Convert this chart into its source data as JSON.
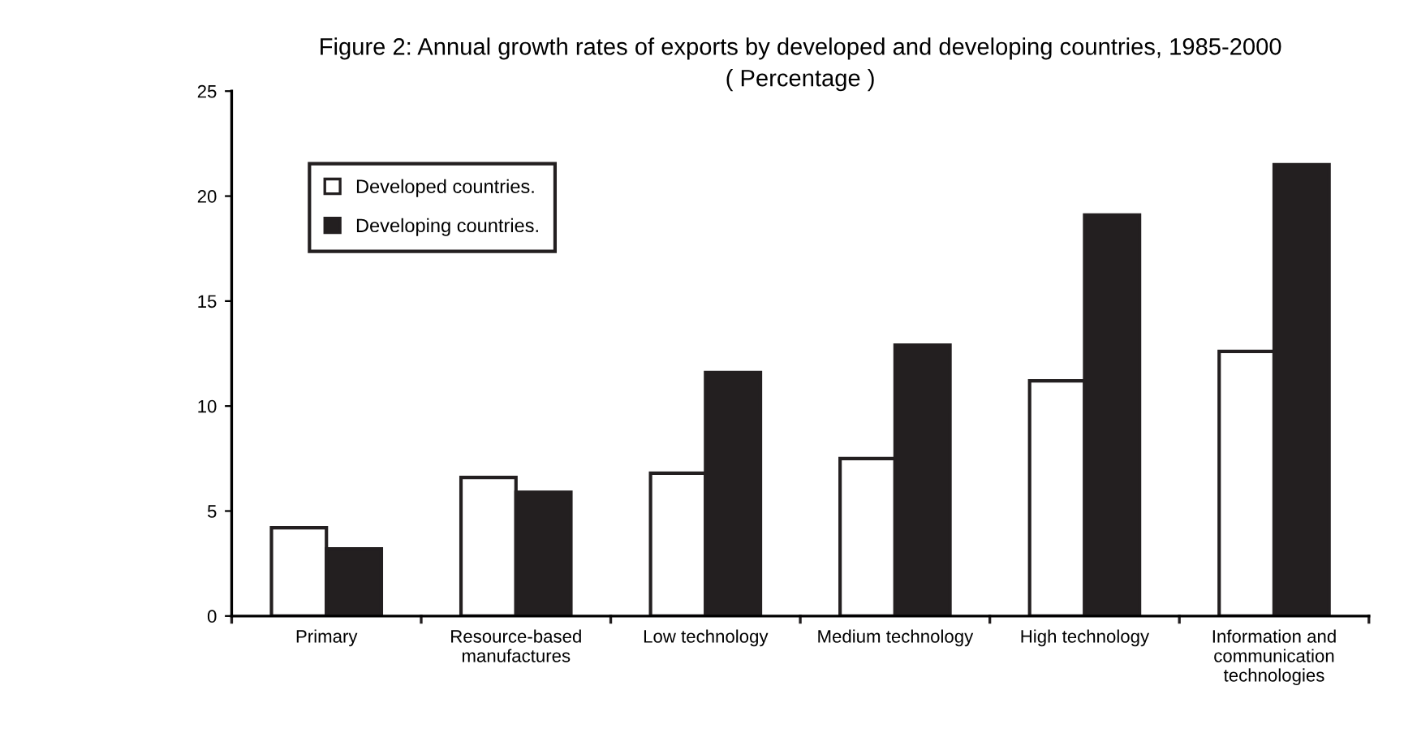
{
  "chart_data": {
    "type": "bar",
    "title": "Figure 2: Annual growth rates of exports by developed and developing countries, 1985-2000",
    "subtitle": "( Percentage )",
    "categories": [
      "Primary",
      "Resource-based\nmanufactures",
      "Low technology",
      "Medium technology",
      "High technology",
      "Information and\ncommunication\ntechnologies"
    ],
    "series": [
      {
        "name": "Developed countries.",
        "color": "#ffffff",
        "values": [
          4.2,
          6.6,
          6.8,
          7.5,
          11.2,
          12.6
        ]
      },
      {
        "name": "Developing countries.",
        "color": "#231f20",
        "values": [
          3.2,
          5.9,
          11.6,
          12.9,
          19.1,
          21.5
        ]
      }
    ],
    "ylim": [
      0,
      25
    ],
    "yticks": [
      0,
      5,
      10,
      15,
      20,
      25
    ],
    "grid": false,
    "legend": "top left"
  }
}
